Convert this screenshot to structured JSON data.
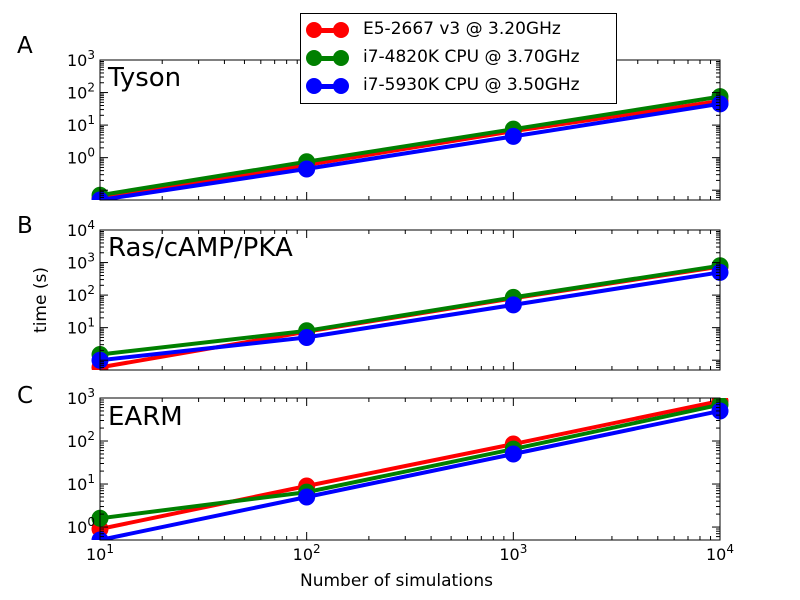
{
  "colors": {
    "series": [
      "#ff0000",
      "#008000",
      "#0000ff"
    ]
  },
  "labels": {
    "ylabel": "time (s)",
    "xlabel": "Number of simulations"
  },
  "legend": {
    "items": [
      {
        "label": "E5-2667 v3 @ 3.20GHz",
        "color": "#ff0000"
      },
      {
        "label": "i7-4820K CPU @ 3.70GHz",
        "color": "#008000"
      },
      {
        "label": "i7-5930K CPU @ 3.50GHz",
        "color": "#0000ff"
      }
    ]
  },
  "chart_data": [
    {
      "type": "line",
      "panel": "A",
      "title": "Tyson",
      "x": [
        10,
        100,
        1000,
        10000
      ],
      "xscale": "log",
      "yscale": "log",
      "xlim": [
        10,
        10000
      ],
      "ylim": [
        0.05,
        1000
      ],
      "yticks": [
        1,
        10,
        100,
        1000
      ],
      "ytick_labels": [
        [
          "10",
          "0"
        ],
        [
          "10",
          "1"
        ],
        [
          "10",
          "2"
        ],
        [
          "10",
          "3"
        ]
      ],
      "series": [
        {
          "name": "E5-2667 v3 @ 3.20GHz",
          "values": [
            0.055,
            0.6,
            6.5,
            55
          ]
        },
        {
          "name": "i7-4820K CPU @ 3.70GHz",
          "values": [
            0.07,
            0.75,
            7.5,
            75
          ]
        },
        {
          "name": "i7-5930K CPU @ 3.50GHz",
          "values": [
            0.05,
            0.45,
            4.5,
            45
          ]
        }
      ]
    },
    {
      "type": "line",
      "panel": "B",
      "title": "Ras/cAMP/PKA",
      "x": [
        10,
        100,
        1000,
        10000
      ],
      "xscale": "log",
      "yscale": "log",
      "xlim": [
        10,
        10000
      ],
      "ylim": [
        0.5,
        10000
      ],
      "yticks": [
        10,
        100,
        1000,
        10000
      ],
      "ytick_labels": [
        [
          "10",
          "1"
        ],
        [
          "10",
          "2"
        ],
        [
          "10",
          "3"
        ],
        [
          "10",
          "4"
        ]
      ],
      "series": [
        {
          "name": "E5-2667 v3 @ 3.20GHz",
          "values": [
            0.6,
            7.5,
            80,
            750
          ]
        },
        {
          "name": "i7-4820K CPU @ 3.70GHz",
          "values": [
            1.5,
            8,
            85,
            800
          ]
        },
        {
          "name": "i7-5930K CPU @ 3.50GHz",
          "values": [
            1,
            5,
            50,
            500
          ]
        }
      ]
    },
    {
      "type": "line",
      "panel": "C",
      "title": "EARM",
      "x": [
        10,
        100,
        1000,
        10000
      ],
      "xscale": "log",
      "yscale": "log",
      "xlim": [
        10,
        10000
      ],
      "ylim": [
        0.5,
        1000
      ],
      "yticks": [
        1,
        10,
        100,
        1000
      ],
      "ytick_labels": [
        [
          "10",
          "0"
        ],
        [
          "10",
          "1"
        ],
        [
          "10",
          "2"
        ],
        [
          "10",
          "3"
        ]
      ],
      "xticks": [
        10,
        100,
        1000,
        10000
      ],
      "xtick_labels": [
        [
          "10",
          "1"
        ],
        [
          "10",
          "2"
        ],
        [
          "10",
          "3"
        ],
        [
          "10",
          "4"
        ]
      ],
      "series": [
        {
          "name": "E5-2667 v3 @ 3.20GHz",
          "values": [
            0.9,
            9,
            85,
            850
          ]
        },
        {
          "name": "i7-4820K CPU @ 3.70GHz",
          "values": [
            1.6,
            6.5,
            65,
            700
          ]
        },
        {
          "name": "i7-5930K CPU @ 3.50GHz",
          "values": [
            0.5,
            5,
            50,
            500
          ]
        }
      ]
    }
  ]
}
